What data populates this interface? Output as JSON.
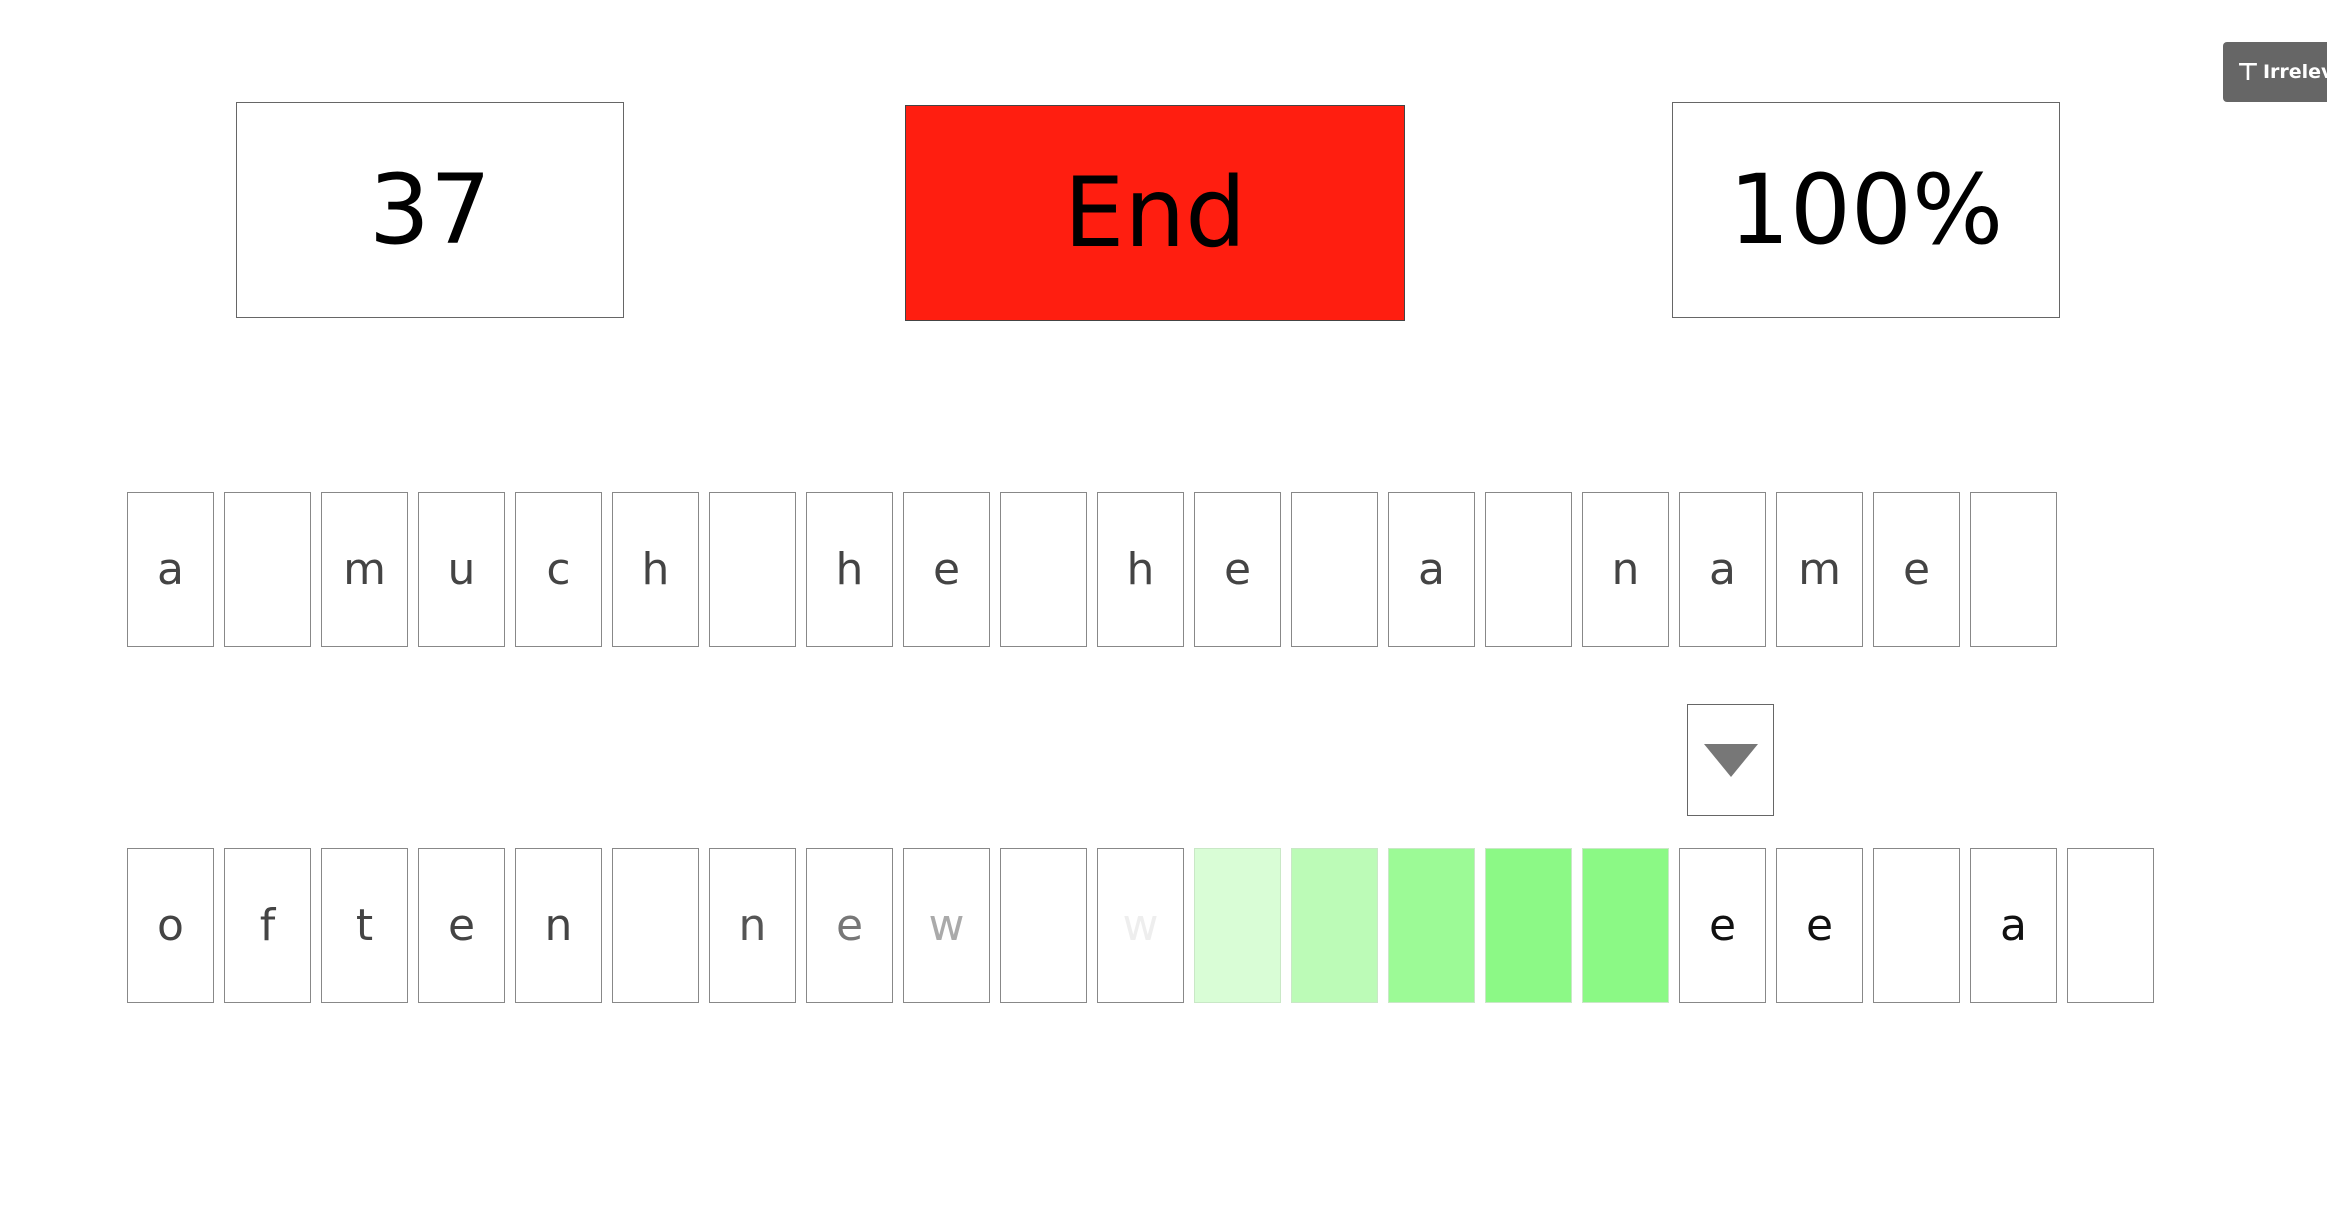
{
  "counter": "37",
  "end_button": "End",
  "percent": "100%",
  "tag": {
    "label": "Irrelevan",
    "icon": "t-icon"
  },
  "target_row": [
    "a",
    "",
    "m",
    "u",
    "c",
    "h",
    "",
    "h",
    "e",
    "",
    "h",
    "e",
    "",
    "a",
    "",
    "n",
    "a",
    "m",
    "e",
    ""
  ],
  "typed_row": [
    {
      "ch": "o",
      "color": "#444",
      "bg": "#ffffff"
    },
    {
      "ch": "f",
      "color": "#444",
      "bg": "#ffffff"
    },
    {
      "ch": "t",
      "color": "#444",
      "bg": "#ffffff"
    },
    {
      "ch": "e",
      "color": "#444",
      "bg": "#ffffff"
    },
    {
      "ch": "n",
      "color": "#444",
      "bg": "#ffffff"
    },
    {
      "ch": "",
      "color": "#444",
      "bg": "#ffffff"
    },
    {
      "ch": "n",
      "color": "#555",
      "bg": "#ffffff"
    },
    {
      "ch": "e",
      "color": "#777",
      "bg": "#ffffff"
    },
    {
      "ch": "w",
      "color": "#aaa",
      "bg": "#ffffff"
    },
    {
      "ch": "",
      "color": "#444",
      "bg": "#ffffff"
    },
    {
      "ch": "w",
      "color": "#eee",
      "bg": "#ffffff"
    },
    {
      "ch": "",
      "color": "#444",
      "bg": "#d9fdd6"
    },
    {
      "ch": "",
      "color": "#444",
      "bg": "#bcfbb7"
    },
    {
      "ch": "",
      "color": "#444",
      "bg": "#9cfa96"
    },
    {
      "ch": "",
      "color": "#444",
      "bg": "#8cf986"
    },
    {
      "ch": "",
      "color": "#444",
      "bg": "#8bf985"
    },
    {
      "ch": "e",
      "color": "#111",
      "bg": "#ffffff"
    },
    {
      "ch": "e",
      "color": "#111",
      "bg": "#ffffff"
    },
    {
      "ch": "",
      "color": "#111",
      "bg": "#ffffff"
    },
    {
      "ch": "a",
      "color": "#111",
      "bg": "#ffffff"
    },
    {
      "ch": "",
      "color": "#111",
      "bg": "#ffffff"
    }
  ],
  "cursor_index": 16,
  "colors": {
    "end_button": "#ff1e10",
    "green_highlight": "#8bf985"
  }
}
